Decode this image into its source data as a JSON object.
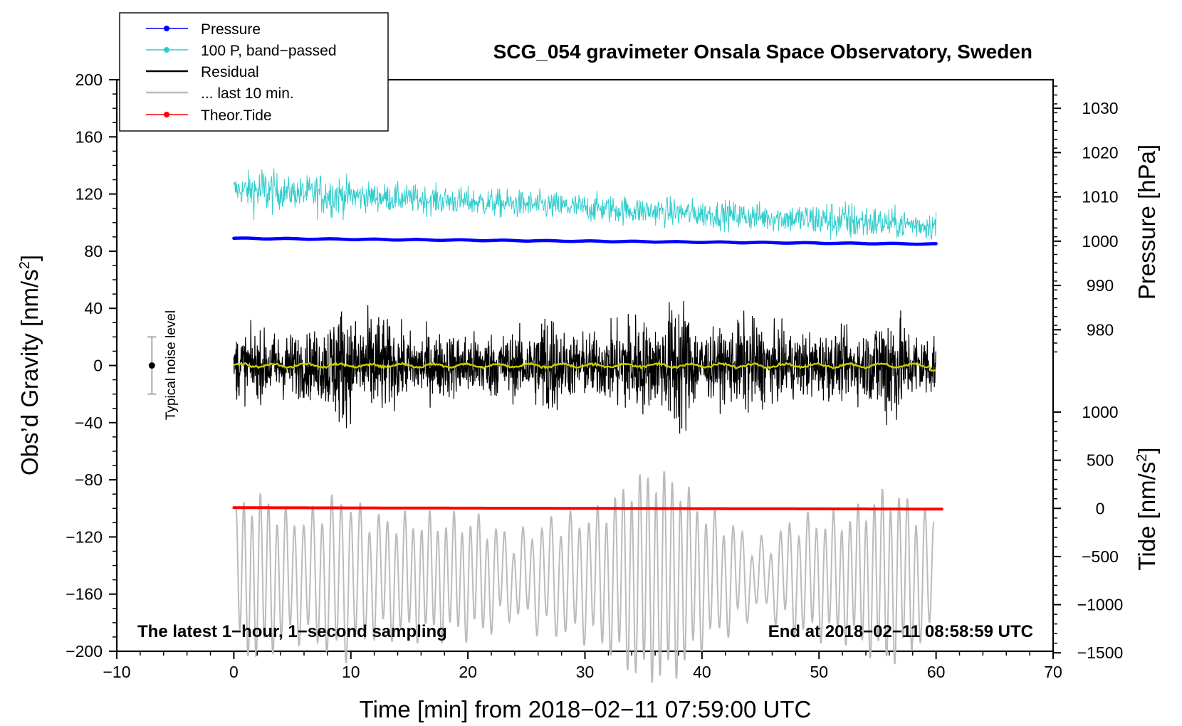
{
  "chart_data": {
    "type": "line",
    "title": "SCG_054 gravimeter Onsala Space Observatory, Sweden",
    "xlabel": "Time [min] from 2018−02−11 07:59:00 UTC",
    "ylabel_left": "Obs’d Gravity [nm/s",
    "ylabel_left_sup": "2",
    "ylabel_left_close": "]",
    "ylabel_right_pressure": "Pressure [hPa]",
    "ylabel_right_tide": "Tide [nm/s",
    "ylabel_right_tide_sup": "2",
    "ylabel_right_tide_close": "]",
    "xlim": [
      -10,
      70
    ],
    "ylim_left": [
      -200,
      200
    ],
    "x_ticks": [
      "−10",
      "0",
      "10",
      "20",
      "30",
      "40",
      "50",
      "60",
      "70"
    ],
    "x_tick_values": [
      -10,
      0,
      10,
      20,
      30,
      40,
      50,
      60,
      70
    ],
    "y_left_ticks": [
      "200",
      "160",
      "120",
      "80",
      "40",
      "0",
      "−40",
      "−80",
      "−120",
      "−160",
      "−200"
    ],
    "y_left_tick_values": [
      200,
      160,
      120,
      80,
      40,
      0,
      -40,
      -80,
      -120,
      -160,
      -200
    ],
    "pressure_axis": {
      "ticks": [
        "1030",
        "1020",
        "1010",
        "1000",
        "990",
        "980"
      ],
      "tick_values": [
        1030,
        1020,
        1010,
        1000,
        990,
        980
      ],
      "scale_gravity_per_hpa": 3.1,
      "gravity_at_1000hpa": 87
    },
    "tide_axis": {
      "ticks": [
        "1000",
        "500",
        "0",
        "−500",
        "−1000",
        "−1500"
      ],
      "tick_values": [
        1000,
        500,
        0,
        -500,
        -1000,
        -1500
      ],
      "scale_gravity_per_unit": 0.0674,
      "gravity_at_zero": -100
    },
    "series": [
      {
        "name": "Pressure",
        "color": "#0000ff",
        "start": [
          0,
          89
        ],
        "end": [
          60,
          85
        ]
      },
      {
        "name": "100 P, band−passed",
        "color": "#33cccc",
        "center": 103,
        "amplitude": 22
      },
      {
        "name": "Residual",
        "color": "#000000",
        "center": 0,
        "amplitude": 35
      },
      {
        "name": "... last 10 min.",
        "color": "#bbbbbb",
        "center": -148,
        "amplitude": 50
      },
      {
        "name": "Theor.Tide",
        "color": "#ff0000",
        "start": [
          0,
          -99.5
        ],
        "end": [
          60.5,
          -100.5
        ]
      }
    ],
    "smoothed_residual": {
      "color": "#cccc00",
      "center": 0
    },
    "noise_level": {
      "label": "Typical noise level",
      "x": -7,
      "center": 0,
      "half_range": 20
    },
    "notes": {
      "left": "The latest 1−hour, 1−second sampling",
      "right": "End at 2018−02−11 08:58:59 UTC"
    },
    "legend": [
      {
        "label": "Pressure",
        "color": "#0000ff",
        "marker": true
      },
      {
        "label": "100 P, band−passed",
        "color": "#33cccc",
        "marker": true
      },
      {
        "label": "Residual",
        "color": "#000000",
        "marker": false
      },
      {
        "label": "... last 10 min.",
        "color": "#bbbbbb",
        "marker": false
      },
      {
        "label": "Theor.Tide",
        "color": "#ff0000",
        "marker": true
      }
    ]
  }
}
